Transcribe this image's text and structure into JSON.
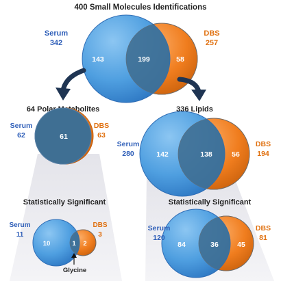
{
  "colors": {
    "serum": "#4f9fe0",
    "serum_dark": "#2f6db5",
    "dbs": "#f07d1e",
    "dbs_dark": "#c25f10",
    "overlap": "#3f6f93",
    "serum_label": "#2e5eb8",
    "dbs_label": "#e0700f",
    "wedge": "#dcdce2",
    "arrow": "#1f3553"
  },
  "top": {
    "title": "400 Small Molecules Identifications",
    "serum_label": "Serum",
    "serum_total": "342",
    "dbs_label": "DBS",
    "dbs_total": "257",
    "serum_only": "143",
    "shared": "199",
    "dbs_only": "58"
  },
  "polar": {
    "title": "64 Polar Metabolites",
    "serum_label": "Serum",
    "serum_total": "62",
    "dbs_label": "DBS",
    "dbs_total": "63",
    "shared": "61"
  },
  "lipids": {
    "title": "336 Lipids",
    "serum_label": "Serum",
    "serum_total": "280",
    "dbs_label": "DBS",
    "dbs_total": "194",
    "serum_only": "142",
    "shared": "138",
    "dbs_only": "56"
  },
  "polar_sig": {
    "title": "Statistically Significant",
    "serum_label": "Serum",
    "serum_total": "11",
    "dbs_label": "DBS",
    "dbs_total": "3",
    "serum_only": "10",
    "shared": "1",
    "dbs_only": "2",
    "callout": "Glycine"
  },
  "lipid_sig": {
    "title": "Statistically Significant",
    "serum_label": "Serum",
    "serum_total": "120",
    "dbs_label": "DBS",
    "dbs_total": "81",
    "serum_only": "84",
    "shared": "36",
    "dbs_only": "45"
  }
}
